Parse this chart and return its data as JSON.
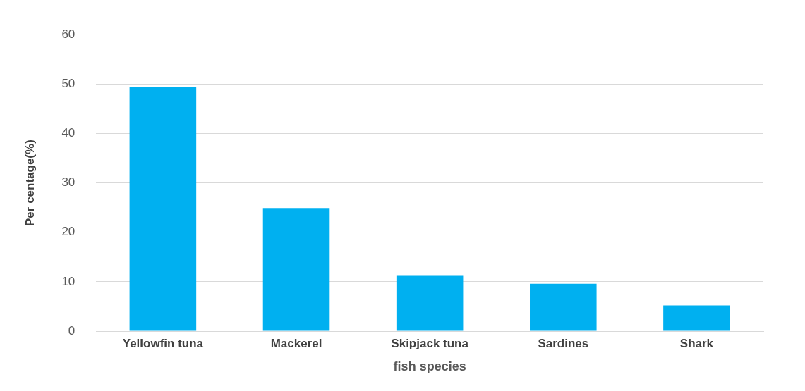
{
  "chart_data": {
    "type": "bar",
    "xlabel": "fish species",
    "ylabel": "Per centage(%)",
    "categories": [
      "Yellowfin tuna",
      "Mackerel",
      "Skipjack tuna",
      "Sardines",
      "Shark"
    ],
    "values": [
      49.4,
      24.9,
      11.2,
      9.6,
      5.2
    ],
    "color": "#00b0f0",
    "ylim": [
      0,
      60
    ],
    "yticks": [
      0,
      10,
      20,
      30,
      40,
      50,
      60
    ],
    "grid": "y"
  }
}
